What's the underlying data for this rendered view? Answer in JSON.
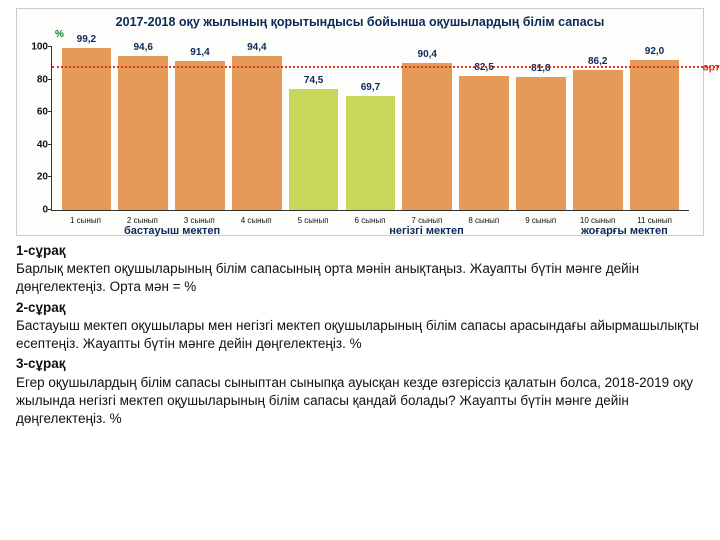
{
  "chart": {
    "type": "bar",
    "title": "2017-2018 оқу жылының қорытындысы бойынша оқушылардың білім сапасы",
    "y_unit": "%",
    "ylim": [
      0,
      100
    ],
    "yticks": [
      0,
      20,
      40,
      60,
      80,
      100
    ],
    "mean_value": 87,
    "mean_label": "орта мән",
    "mean_color": "#e03020",
    "bars": [
      {
        "label": "1 сынып",
        "value": 99.2,
        "color": "#e59a5a"
      },
      {
        "label": "2 сынып",
        "value": 94.6,
        "color": "#e59a5a"
      },
      {
        "label": "3 сынып",
        "value": 91.4,
        "color": "#e59a5a"
      },
      {
        "label": "4 сынып",
        "value": 94.4,
        "color": "#e59a5a"
      },
      {
        "label": "5 сынып",
        "value": 74.5,
        "color": "#c8d65a"
      },
      {
        "label": "6 сынып",
        "value": 69.7,
        "color": "#c8d65a"
      },
      {
        "label": "7 сынып",
        "value": 90.4,
        "color": "#e59a5a"
      },
      {
        "label": "8 сынып",
        "value": 82.5,
        "color": "#e59a5a"
      },
      {
        "label": "9 сынып",
        "value": 81.8,
        "color": "#e59a5a"
      },
      {
        "label": "10 сынып",
        "value": 86.2,
        "color": "#e59a5a"
      },
      {
        "label": "11 сынып",
        "value": 92.0,
        "color": "#e59a5a"
      }
    ],
    "value_format_locale": "comma-decimal",
    "groups": [
      {
        "label": "бастауыш мектеп",
        "span": 4
      },
      {
        "label": "негізгі мектеп",
        "span": 5
      },
      {
        "label": "жоғарғы мектеп",
        "span": 2
      }
    ],
    "background_color": "#fdfdfb",
    "axis_color": "#333333",
    "title_color": "#0a2a5a",
    "value_color": "#0a2a5a",
    "group_color": "#0a2a5a"
  },
  "questions": {
    "q1_head": "1-сұрақ",
    "q1_body": "Барлық мектеп оқушыларының білім сапасының орта мәнін анықтаңыз. Жауапты бүтін мәнге дейін дөңгелектеңіз.    Орта мән    =     %",
    "q2_head": "2-сұрақ",
    "q2_body": "Бастауыш мектеп оқушылары мен негізгі мектеп оқушыларының білім сапасы арасындағы айырмашылықты есептеңіз. Жауапты бүтін мәнге дейін дөңгелектеңіз.       %",
    "q3_head": "3-сұрақ",
    "q3_body": "Егер оқушылардың білім сапасы сыныптан сыныпқа ауысқан кезде өзгеріссіз қалатын болса, 2018-2019 оқу жылында негізгі мектеп оқушыларының білім сапасы қандай болады? Жауапты бүтін мәнге дейін дөңгелектеңіз.     %"
  }
}
